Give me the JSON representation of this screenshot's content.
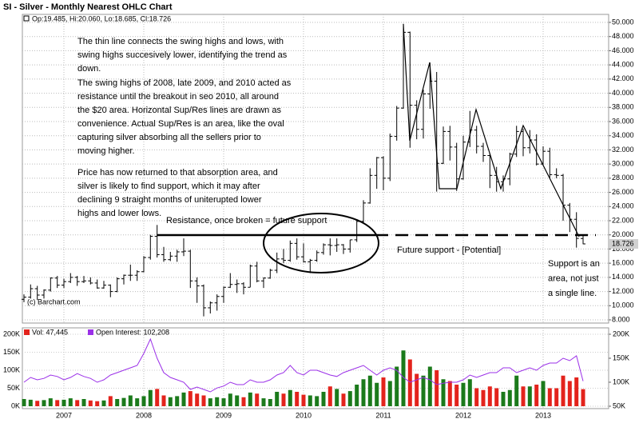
{
  "chart_data": [
    {
      "type": "ohlc",
      "title": "SI - Silver - Monthly Nearest OHLC Chart",
      "legend": "Op:19.485, Hi:20.060, Lo:18.685, Cl:18.726",
      "copyright": "(c) Barchart.com",
      "last_label": "18.726",
      "color": "#000000",
      "grid": true,
      "x": [
        2006.5,
        2006.583,
        2006.667,
        2006.75,
        2006.833,
        2006.917,
        2007,
        2007.083,
        2007.167,
        2007.25,
        2007.333,
        2007.417,
        2007.5,
        2007.583,
        2007.667,
        2007.75,
        2007.833,
        2007.917,
        2008,
        2008.083,
        2008.167,
        2008.25,
        2008.333,
        2008.417,
        2008.5,
        2008.583,
        2008.667,
        2008.75,
        2008.833,
        2008.917,
        2009,
        2009.083,
        2009.167,
        2009.25,
        2009.333,
        2009.417,
        2009.5,
        2009.583,
        2009.667,
        2009.75,
        2009.833,
        2009.917,
        2010,
        2010.083,
        2010.167,
        2010.25,
        2010.333,
        2010.417,
        2010.5,
        2010.583,
        2010.667,
        2010.75,
        2010.833,
        2010.917,
        2011,
        2011.083,
        2011.167,
        2011.25,
        2011.333,
        2011.417,
        2011.5,
        2011.583,
        2011.667,
        2011.75,
        2011.833,
        2011.917,
        2012,
        2012.083,
        2012.167,
        2012.25,
        2012.333,
        2012.417,
        2012.5,
        2012.583,
        2012.667,
        2012.75,
        2012.833,
        2012.917,
        2013,
        2013.083,
        2013.167,
        2013.25,
        2013.333,
        2013.417,
        2013.5
      ],
      "open": [
        10.9,
        11.2,
        12.4,
        11.5,
        12.2,
        13.9,
        12.9,
        13.4,
        14.0,
        13.4,
        13.5,
        13.2,
        12.5,
        12.9,
        12.0,
        13.8,
        14.3,
        14.3,
        14.8,
        16.8,
        19.8,
        17.2,
        16.5,
        17.0,
        17.6,
        17.7,
        13.5,
        12.8,
        9.7,
        10.4,
        11.3,
        12.6,
        13.0,
        13.1,
        12.6,
        15.6,
        13.5,
        13.9,
        15.0,
        16.6,
        16.4,
        18.8,
        16.9,
        16.2,
        16.4,
        17.5,
        18.6,
        18.5,
        18.6,
        18.0,
        19.3,
        21.9,
        24.5,
        28.4,
        30.9,
        28.0,
        33.9,
        37.9,
        48.6,
        38.3,
        34.9,
        39.9,
        41.7,
        30.1,
        34.6,
        32.4,
        27.9,
        33.1,
        34.8,
        32.5,
        31.2,
        28.4,
        27.5,
        27.9,
        31.4,
        34.6,
        32.3,
        33.4,
        30.0,
        31.8,
        28.5,
        28.4,
        24.2,
        22.2,
        19.485
      ],
      "high": [
        11.6,
        13.0,
        12.8,
        12.3,
        14.0,
        14.2,
        13.8,
        14.6,
        14.2,
        14.2,
        14.0,
        13.7,
        13.5,
        13.0,
        14.0,
        14.4,
        15.8,
        15.0,
        17.0,
        20.0,
        21.4,
        18.3,
        17.6,
        17.9,
        19.5,
        17.9,
        14.0,
        13.0,
        10.6,
        11.6,
        12.7,
        14.6,
        13.7,
        13.3,
        15.8,
        16.2,
        14.0,
        15.2,
        17.5,
        18.0,
        19.2,
        19.5,
        18.8,
        16.6,
        17.8,
        18.8,
        19.5,
        19.5,
        18.7,
        19.3,
        22.2,
        24.9,
        29.4,
        31.0,
        31.1,
        34.3,
        38.2,
        49.8,
        48.7,
        39.0,
        40.5,
        44.3,
        43.0,
        35.3,
        35.4,
        33.0,
        34.0,
        37.5,
        35.4,
        33.0,
        31.5,
        29.6,
        28.4,
        31.6,
        35.4,
        35.0,
        34.8,
        34.2,
        32.5,
        32.3,
        29.4,
        28.6,
        24.5,
        23.2,
        20.06
      ],
      "low": [
        10.5,
        11.0,
        10.8,
        11.0,
        12.0,
        12.5,
        12.5,
        13.2,
        12.8,
        13.2,
        13.0,
        12.4,
        12.4,
        11.2,
        11.9,
        13.0,
        13.5,
        13.5,
        14.7,
        16.5,
        16.8,
        16.2,
        16.3,
        16.2,
        17.0,
        12.5,
        10.4,
        8.5,
        8.9,
        9.3,
        10.4,
        12.5,
        11.8,
        11.6,
        12.6,
        13.3,
        12.5,
        13.8,
        14.6,
        16.0,
        16.2,
        16.5,
        16.1,
        14.6,
        16.2,
        17.2,
        17.1,
        17.6,
        17.3,
        17.5,
        19.0,
        21.6,
        24.4,
        26.5,
        26.3,
        27.6,
        33.3,
        37.8,
        32.3,
        33.5,
        33.6,
        37.8,
        26.1,
        30.0,
        30.5,
        26.2,
        27.8,
        32.4,
        31.5,
        30.3,
        26.6,
        26.1,
        26.1,
        27.0,
        31.0,
        31.1,
        31.5,
        29.8,
        29.9,
        28.0,
        28.0,
        22.0,
        20.4,
        18.2,
        18.685
      ],
      "close": [
        11.2,
        12.4,
        11.5,
        12.2,
        13.9,
        12.9,
        13.4,
        14.0,
        13.4,
        13.5,
        13.2,
        12.5,
        12.9,
        12.0,
        13.8,
        14.3,
        14.3,
        14.8,
        16.8,
        19.8,
        17.2,
        16.5,
        17.0,
        17.6,
        17.7,
        13.5,
        12.8,
        9.7,
        10.4,
        11.3,
        12.6,
        13.0,
        13.1,
        12.6,
        15.6,
        13.5,
        13.9,
        15.0,
        16.6,
        16.4,
        18.8,
        16.9,
        16.2,
        16.4,
        17.5,
        18.6,
        18.5,
        18.6,
        18.0,
        19.3,
        21.9,
        24.5,
        28.4,
        30.9,
        28.0,
        33.9,
        37.9,
        48.6,
        38.3,
        34.9,
        39.9,
        41.7,
        30.1,
        34.6,
        32.4,
        27.9,
        33.1,
        34.8,
        32.5,
        31.2,
        28.4,
        27.5,
        27.9,
        31.4,
        34.6,
        32.3,
        33.4,
        30.0,
        31.8,
        28.5,
        28.4,
        24.2,
        22.2,
        19.5,
        18.726
      ],
      "xlim": [
        2006.48,
        2013.82
      ],
      "xticks": [
        2007,
        2008,
        2009,
        2010,
        2011,
        2012,
        2013
      ],
      "ylim": [
        8,
        50
      ],
      "yticks": [
        {
          "value": 8,
          "label": "8.000"
        },
        {
          "value": 10,
          "label": "10.000"
        },
        {
          "value": 12,
          "label": "12.000"
        },
        {
          "value": 14,
          "label": "14.000"
        },
        {
          "value": 16,
          "label": "16.000"
        },
        {
          "value": 18,
          "label": "18.000"
        },
        {
          "value": 20,
          "label": "20.000"
        },
        {
          "value": 22,
          "label": "22.000"
        },
        {
          "value": 24,
          "label": "24.000"
        },
        {
          "value": 26,
          "label": "26.000"
        },
        {
          "value": 28,
          "label": "28.000"
        },
        {
          "value": 30,
          "label": "30.000"
        },
        {
          "value": 32,
          "label": "32.000"
        },
        {
          "value": 34,
          "label": "34.000"
        },
        {
          "value": 36,
          "label": "36.000"
        },
        {
          "value": 38,
          "label": "38.000"
        },
        {
          "value": 40,
          "label": "40.000"
        },
        {
          "value": 42,
          "label": "42.000"
        },
        {
          "value": 44,
          "label": "44.000"
        },
        {
          "value": 46,
          "label": "46.000"
        },
        {
          "value": 48,
          "label": "48.000"
        },
        {
          "value": 50,
          "label": "50.000"
        }
      ],
      "annotations": {
        "para1": [
          "The thin line connects the swing highs and lows, with",
          "swing highs succesively lower, identifying the trend as",
          "down."
        ],
        "para2": [
          "The swing highs of 2008, late 2009, and 2010 acted as",
          "resistance until the breakout in seo 2010, all around",
          "the $20 area.  Horizontal Sup/Res lines are drawn as",
          "convenience.  Actual Sup/Res is an area, like the oval",
          "capturing silver absorbing all the sellers prior to",
          "moving higher."
        ],
        "para3": [
          "Price has now returned to that absorption area, and",
          "silver is likely  to find support, which it may after",
          "declining 9 straight months of uniterupted lower",
          "highs and lower lows."
        ],
        "resistance": "Resistance, once broken = future support",
        "future": "Future support - [Potential]",
        "support": [
          "Support is an",
          "area, not just",
          "a single line."
        ]
      }
    },
    {
      "type": "volume",
      "up_color": "#1b7a1b",
      "down_color": "#e3231c",
      "series": [
        {
          "name": "Vol: 47,445",
          "color": "#e3231c",
          "values": [
            20000,
            18000,
            15000,
            17000,
            22000,
            17000,
            18000,
            22000,
            17000,
            20000,
            16000,
            14000,
            16000,
            28000,
            20000,
            23000,
            30000,
            22000,
            28000,
            45000,
            48000,
            30000,
            25000,
            28000,
            38000,
            42000,
            35000,
            30000,
            22000,
            25000,
            22000,
            35000,
            30000,
            25000,
            38000,
            35000,
            22000,
            20000,
            40000,
            35000,
            45000,
            40000,
            32000,
            30000,
            28000,
            40000,
            55000,
            48000,
            35000,
            42000,
            60000,
            75000,
            85000,
            65000,
            80000,
            70000,
            110000,
            155000,
            130000,
            90000,
            85000,
            110000,
            100000,
            75000,
            70000,
            60000,
            65000,
            75000,
            50000,
            45000,
            55000,
            50000,
            40000,
            45000,
            85000,
            55000,
            55000,
            60000,
            70000,
            50000,
            50000,
            85000,
            70000,
            80000,
            47445
          ]
        },
        {
          "name": "Open Interest: 102,208",
          "color": "#9b30e8",
          "axis": "y2",
          "values": [
            100000,
            110000,
            105000,
            108000,
            115000,
            112000,
            105000,
            110000,
            118000,
            112000,
            108000,
            100000,
            105000,
            115000,
            120000,
            125000,
            130000,
            135000,
            160000,
            190000,
            150000,
            120000,
            110000,
            105000,
            100000,
            85000,
            90000,
            85000,
            80000,
            88000,
            92000,
            100000,
            95000,
            95000,
            105000,
            100000,
            100000,
            105000,
            115000,
            120000,
            135000,
            120000,
            115000,
            125000,
            125000,
            120000,
            115000,
            112000,
            120000,
            125000,
            130000,
            135000,
            125000,
            115000,
            125000,
            130000,
            125000,
            110000,
            100000,
            105000,
            110000,
            105000,
            95000,
            98000,
            100000,
            100000,
            105000,
            115000,
            110000,
            115000,
            120000,
            120000,
            130000,
            130000,
            120000,
            125000,
            130000,
            125000,
            135000,
            140000,
            140000,
            150000,
            145000,
            155000,
            102208
          ]
        }
      ],
      "ylim": [
        0,
        200000
      ],
      "yticks": [
        {
          "value": 0,
          "label": "0K"
        },
        {
          "value": 50000,
          "label": "50K"
        },
        {
          "value": 100000,
          "label": "100K"
        },
        {
          "value": 150000,
          "label": "150K"
        },
        {
          "value": 200000,
          "label": "200K"
        }
      ],
      "y2lim": [
        50000,
        200000
      ],
      "y2ticks": [
        {
          "value": 50000,
          "label": "50K"
        },
        {
          "value": 100000,
          "label": "100K"
        },
        {
          "value": 150000,
          "label": "150K"
        },
        {
          "value": 200000,
          "label": "200K"
        }
      ]
    }
  ]
}
